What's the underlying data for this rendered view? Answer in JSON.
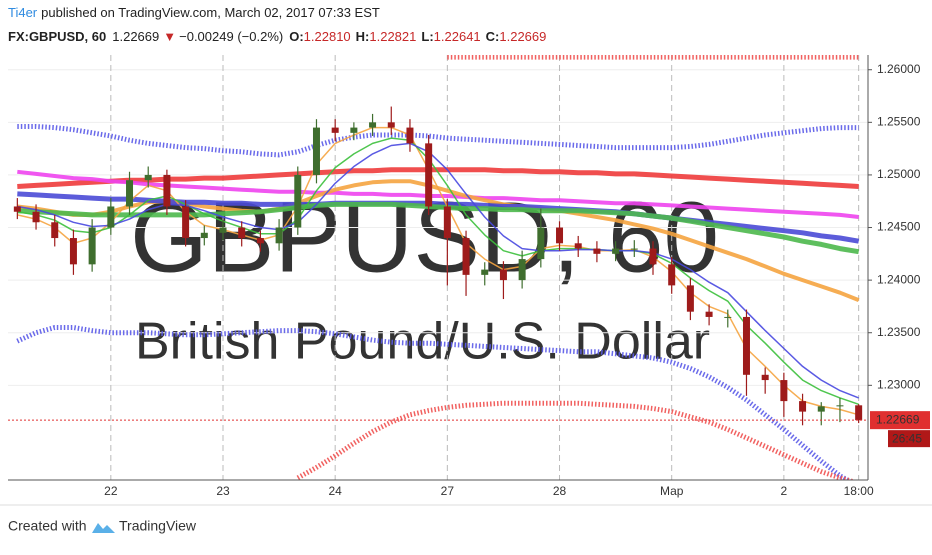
{
  "header": {
    "author": "Ti4er",
    "published": "published on TradingView.com, March 02, 2017 07:33 EST",
    "symbol": "FX:GBPUSD, 60",
    "last": "1.22669",
    "arrow": "▼",
    "change": "−0.00249 (−0.2%)",
    "o_label": "O:",
    "o": "1.22810",
    "h_label": "H:",
    "h": "1.22821",
    "l_label": "L:",
    "l": "1.22641",
    "c_label": "C:",
    "c": "1.22669"
  },
  "watermark": {
    "symbol": "GBPUSD, 60",
    "description": "British Pound/U.S. Dollar"
  },
  "footer": {
    "created": "Created with",
    "brand": "TradingView"
  },
  "chart_data": {
    "type": "candlestick",
    "categories": [
      null,
      null,
      null,
      null,
      null,
      "22",
      null,
      null,
      null,
      null,
      null,
      "23",
      null,
      null,
      null,
      null,
      null,
      "24",
      null,
      null,
      null,
      null,
      null,
      "27",
      null,
      null,
      null,
      null,
      null,
      "28",
      null,
      null,
      null,
      null,
      null,
      "Мар",
      null,
      null,
      null,
      null,
      null,
      "2",
      null,
      null,
      null,
      "18:00"
    ],
    "open": [
      1.247,
      1.2465,
      1.2455,
      1.244,
      1.2415,
      1.245,
      1.247,
      1.2495,
      1.25,
      1.247,
      1.244,
      1.2445,
      1.245,
      1.244,
      1.2435,
      1.245,
      1.25,
      1.2545,
      1.254,
      1.2545,
      1.255,
      1.2545,
      1.253,
      1.247,
      1.244,
      1.2405,
      1.241,
      1.24,
      1.242,
      1.245,
      1.2435,
      1.243,
      1.2425,
      1.243,
      1.243,
      1.2415,
      1.2395,
      1.237,
      1.2365,
      1.2365,
      1.231,
      1.2305,
      1.2285,
      1.2275,
      1.228,
      1.2281
    ],
    "high": [
      1.2478,
      1.2472,
      1.2462,
      1.2448,
      1.2458,
      1.2478,
      1.2503,
      1.2508,
      1.2505,
      1.2476,
      1.2452,
      1.2457,
      1.2456,
      1.2447,
      1.2458,
      1.2508,
      1.2553,
      1.2553,
      1.255,
      1.2558,
      1.2565,
      1.2553,
      1.2538,
      1.2477,
      1.2447,
      1.2417,
      1.2418,
      1.2428,
      1.2468,
      1.2456,
      1.2442,
      1.2437,
      1.2437,
      1.2438,
      1.2437,
      1.2422,
      1.2402,
      1.2377,
      1.2372,
      1.2372,
      1.2317,
      1.2312,
      1.2292,
      1.2284,
      1.2288,
      1.22821
    ],
    "low": [
      1.2458,
      1.2448,
      1.2432,
      1.2405,
      1.2408,
      1.2443,
      1.2462,
      1.2488,
      1.2462,
      1.2432,
      1.2433,
      1.2438,
      1.2432,
      1.2427,
      1.2428,
      1.2443,
      1.2492,
      1.2532,
      1.2533,
      1.2537,
      1.2538,
      1.2522,
      1.2462,
      1.2395,
      1.2385,
      1.2395,
      1.2382,
      1.2392,
      1.2412,
      1.2428,
      1.2422,
      1.2417,
      1.2418,
      1.2422,
      1.2405,
      1.2387,
      1.2362,
      1.2357,
      1.2355,
      1.229,
      1.2292,
      1.227,
      1.2262,
      1.2262,
      1.2265,
      1.22641
    ],
    "close": [
      1.2465,
      1.2455,
      1.244,
      1.2415,
      1.245,
      1.247,
      1.2495,
      1.25,
      1.247,
      1.244,
      1.2445,
      1.245,
      1.244,
      1.2435,
      1.245,
      1.25,
      1.2545,
      1.254,
      1.2545,
      1.255,
      1.2545,
      1.253,
      1.247,
      1.244,
      1.2405,
      1.241,
      1.24,
      1.242,
      1.245,
      1.2435,
      1.243,
      1.2425,
      1.243,
      1.243,
      1.2415,
      1.2395,
      1.237,
      1.2365,
      1.2365,
      1.231,
      1.2305,
      1.2285,
      1.2275,
      1.228,
      1.2281,
      1.22669
    ],
    "up_color": "#3f6e2e",
    "down_color": "#9e1b1b",
    "series": [
      {
        "color": "#5a5ae8",
        "line_width": 5,
        "dashed": true,
        "values": [
          1.2546,
          1.2546,
          1.2545,
          1.2543,
          1.254,
          1.2537,
          1.2533,
          1.253,
          1.2528,
          1.2526,
          1.2525,
          1.2523,
          1.2522,
          1.252,
          1.2519,
          1.2522,
          1.2528,
          1.2533,
          1.2536,
          1.2538,
          1.2538,
          1.2538,
          1.2537,
          1.2535,
          1.2534,
          1.2533,
          1.2532,
          1.2531,
          1.253,
          1.2529,
          1.2528,
          1.2527,
          1.2526,
          1.2526,
          1.2526,
          1.2526,
          1.2527,
          1.2529,
          1.2532,
          1.2535,
          1.2538,
          1.254,
          1.2542,
          1.2544,
          1.2545,
          1.2545
        ]
      },
      {
        "color": "#5a5ae8",
        "line_width": 5,
        "dashed": true,
        "values": [
          1.2342,
          1.235,
          1.2355,
          1.2355,
          1.2352,
          1.235,
          1.235,
          1.235,
          1.2349,
          1.2348,
          1.2348,
          1.2349,
          1.235,
          1.2351,
          1.2352,
          1.2352,
          1.2351,
          1.2349,
          1.2346,
          1.2343,
          1.2341,
          1.234,
          1.234,
          1.2339,
          1.2338,
          1.2337,
          1.2336,
          1.2335,
          1.2334,
          1.2333,
          1.2332,
          1.2332,
          1.233,
          1.2328,
          1.2326,
          1.2322,
          1.2316,
          1.2308,
          1.2298,
          1.2286,
          1.2272,
          1.2258,
          1.2243,
          1.2228,
          1.2214,
          1.2204
        ]
      },
      {
        "color": "#f0504f",
        "line_width": 5,
        "dashed": true,
        "values": [
          null,
          null,
          null,
          null,
          null,
          null,
          null,
          null,
          null,
          null,
          null,
          null,
          null,
          null,
          null,
          null,
          null,
          null,
          null,
          null,
          null,
          null,
          null,
          1.2612,
          1.2612,
          1.2612,
          1.2612,
          1.2612,
          1.2612,
          1.2612,
          1.2612,
          1.2612,
          1.2612,
          1.2612,
          1.2612,
          1.2612,
          1.2612,
          1.2612,
          1.2612,
          1.2612,
          1.2612,
          1.2612,
          1.2612,
          1.2612,
          1.2612,
          1.2612
        ]
      },
      {
        "color": "#f0504f",
        "line_width": 5,
        "dashed": true,
        "values": [
          null,
          null,
          null,
          null,
          null,
          null,
          null,
          null,
          null,
          null,
          null,
          null,
          null,
          null,
          null,
          1.2212,
          1.2222,
          1.2233,
          1.2245,
          1.2256,
          1.2265,
          1.2272,
          1.2276,
          1.2279,
          1.2281,
          1.2282,
          1.2283,
          1.2283,
          1.2283,
          1.2283,
          1.2283,
          1.2282,
          1.2281,
          1.228,
          1.2278,
          1.2275,
          1.227,
          1.2265,
          1.2258,
          1.225,
          1.2242,
          1.2234,
          1.2226,
          1.2218,
          1.2212,
          1.2207
        ]
      },
      {
        "color": "#ee3b3b",
        "line_width": 5,
        "values": [
          1.2489,
          1.249,
          1.2491,
          1.2492,
          1.2493,
          1.2494,
          1.2495,
          1.2495,
          1.2496,
          1.2496,
          1.2497,
          1.2497,
          1.2498,
          1.2499,
          1.25,
          1.2501,
          1.2502,
          1.2503,
          1.2504,
          1.2504,
          1.2505,
          1.2505,
          1.2505,
          1.2505,
          1.2505,
          1.2505,
          1.2504,
          1.2504,
          1.2503,
          1.2503,
          1.2502,
          1.2502,
          1.2501,
          1.2501,
          1.25,
          1.2499,
          1.2498,
          1.2497,
          1.2496,
          1.2495,
          1.2494,
          1.2493,
          1.2492,
          1.2491,
          1.249,
          1.2489
        ]
      },
      {
        "color": "#ee44ee",
        "line_width": 4,
        "values": [
          1.2503,
          1.2501,
          1.2499,
          1.2497,
          1.2496,
          1.2494,
          1.2493,
          1.2491,
          1.249,
          1.2489,
          1.2488,
          1.2487,
          1.2486,
          1.2485,
          1.2484,
          1.2484,
          1.2483,
          1.2483,
          1.2482,
          1.2482,
          1.2481,
          1.2481,
          1.248,
          1.248,
          1.2479,
          1.2478,
          1.2478,
          1.2477,
          1.2476,
          1.2476,
          1.2475,
          1.2474,
          1.2473,
          1.2473,
          1.2472,
          1.2471,
          1.247,
          1.2469,
          1.2468,
          1.2467,
          1.2466,
          1.2465,
          1.2464,
          1.2463,
          1.2462,
          1.246
        ]
      },
      {
        "color": "#f5a440",
        "line_width": 4,
        "values": [
          1.247,
          1.2468,
          1.2465,
          1.2462,
          1.2462,
          1.2465,
          1.247,
          1.2474,
          1.2475,
          1.2473,
          1.247,
          1.2468,
          1.2466,
          1.2465,
          1.2468,
          1.2473,
          1.248,
          1.2486,
          1.249,
          1.2493,
          1.2494,
          1.2494,
          1.249,
          1.2485,
          1.248,
          1.2476,
          1.2472,
          1.247,
          1.2468,
          1.2466,
          1.2463,
          1.246,
          1.2457,
          1.2453,
          1.2449,
          1.2444,
          1.2438,
          1.2432,
          1.2426,
          1.242,
          1.2413,
          1.2406,
          1.24,
          1.2394,
          1.2388,
          1.2381
        ]
      },
      {
        "color": "#4a4ad6",
        "line_width": 5,
        "values": [
          1.2482,
          1.2481,
          1.248,
          1.2479,
          1.2478,
          1.2477,
          1.2477,
          1.2476,
          1.2475,
          1.2474,
          1.2474,
          1.2473,
          1.2473,
          1.2472,
          1.2472,
          1.2472,
          1.2472,
          1.2473,
          1.2473,
          1.2473,
          1.2473,
          1.2473,
          1.2473,
          1.2472,
          1.2472,
          1.2471,
          1.247,
          1.247,
          1.2469,
          1.2468,
          1.2467,
          1.2466,
          1.2465,
          1.2463,
          1.2461,
          1.2459,
          1.2457,
          1.2455,
          1.2453,
          1.2451,
          1.2449,
          1.2447,
          1.2445,
          1.2442,
          1.244,
          1.2437
        ]
      },
      {
        "color": "#4cb84c",
        "line_width": 5,
        "values": [
          1.2466,
          1.2465,
          1.2464,
          1.2463,
          1.2462,
          1.2462,
          1.2462,
          1.2462,
          1.2462,
          1.2462,
          1.2462,
          1.2463,
          1.2464,
          1.2465,
          1.2467,
          1.2469,
          1.2471,
          1.2472,
          1.2472,
          1.2472,
          1.2472,
          1.2471,
          1.247,
          1.2469,
          1.2468,
          1.2468,
          1.2467,
          1.2467,
          1.2466,
          1.2466,
          1.2466,
          1.2465,
          1.2464,
          1.2463,
          1.2461,
          1.2459,
          1.2456,
          1.2453,
          1.245,
          1.2447,
          1.2444,
          1.2441,
          1.2437,
          1.2434,
          1.243,
          1.2427
        ]
      },
      {
        "color": "#f5a440",
        "line_width": 1.5,
        "values": [
          1.2462,
          1.2458,
          1.245,
          1.2435,
          1.244,
          1.2455,
          1.2475,
          1.249,
          1.2485,
          1.2465,
          1.2452,
          1.2448,
          1.2443,
          1.2438,
          1.2443,
          1.247,
          1.251,
          1.253,
          1.2538,
          1.2545,
          1.2545,
          1.2538,
          1.2505,
          1.247,
          1.2435,
          1.242,
          1.241,
          1.2413,
          1.243,
          1.2433,
          1.2432,
          1.2428,
          1.2428,
          1.2429,
          1.2422,
          1.2408,
          1.2388,
          1.2375,
          1.2368,
          1.2335,
          1.2318,
          1.23,
          1.2285,
          1.228,
          1.2277,
          1.2272
        ]
      },
      {
        "color": "#3cc03c",
        "line_width": 1.5,
        "values": [
          1.2465,
          1.2462,
          1.2457,
          1.2447,
          1.2445,
          1.245,
          1.2462,
          1.2476,
          1.248,
          1.2472,
          1.2463,
          1.2456,
          1.245,
          1.2444,
          1.2444,
          1.2458,
          1.2485,
          1.2507,
          1.252,
          1.253,
          1.2535,
          1.2533,
          1.2515,
          1.249,
          1.2462,
          1.2443,
          1.2428,
          1.2423,
          1.2428,
          1.243,
          1.243,
          1.2429,
          1.2428,
          1.2428,
          1.2425,
          1.2416,
          1.2402,
          1.239,
          1.238,
          1.2357,
          1.234,
          1.2322,
          1.2305,
          1.2295,
          1.2288,
          1.2282
        ]
      },
      {
        "color": "#4848e0",
        "line_width": 1.5,
        "values": [
          1.247,
          1.2467,
          1.2462,
          1.2455,
          1.2451,
          1.2452,
          1.2458,
          1.2467,
          1.2472,
          1.2471,
          1.2466,
          1.246,
          1.2455,
          1.245,
          1.2448,
          1.2455,
          1.2472,
          1.2492,
          1.2508,
          1.252,
          1.2528,
          1.253,
          1.2522,
          1.2505,
          1.2482,
          1.246,
          1.2442,
          1.243,
          1.2428,
          1.2428,
          1.2429,
          1.2429,
          1.2428,
          1.2428,
          1.2426,
          1.242,
          1.241,
          1.2398,
          1.2388,
          1.237,
          1.2352,
          1.2335,
          1.2318,
          1.2305,
          1.2295,
          1.2288
        ]
      }
    ],
    "ylim": [
      1.221,
      1.2614
    ],
    "yticks": [
      {
        "value": 1.26,
        "label": "1.26000"
      },
      {
        "value": 1.255,
        "label": "1.25500"
      },
      {
        "value": 1.25,
        "label": "1.25000"
      },
      {
        "value": 1.245,
        "label": "1.24500"
      },
      {
        "value": 1.24,
        "label": "1.24000"
      },
      {
        "value": 1.235,
        "label": "1.23500"
      },
      {
        "value": 1.23,
        "label": "1.23000"
      }
    ],
    "grid": true,
    "price_line_color": "#e03030",
    "countdown": "26:45"
  }
}
